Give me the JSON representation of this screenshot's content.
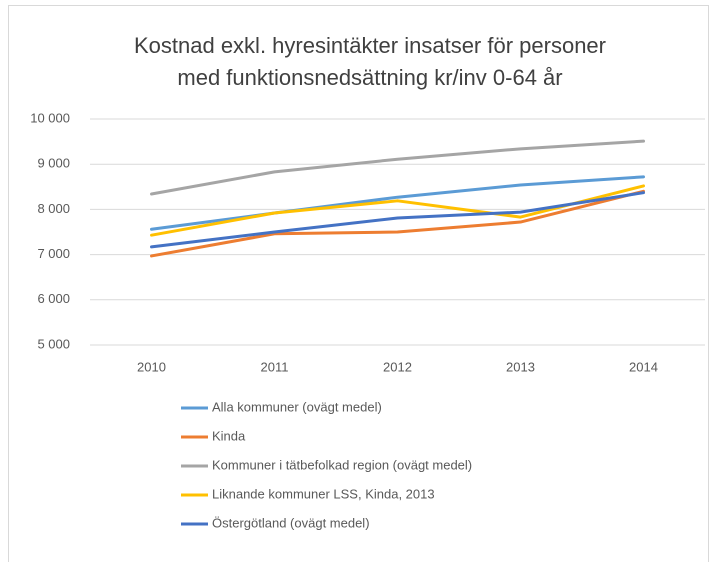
{
  "chart_data": {
    "type": "line",
    "title": [
      "Kostnad exkl. hyresintäkter insatser för personer",
      "med funktionsnedsättning kr/inv 0-64 år"
    ],
    "categories": [
      "2010",
      "2011",
      "2012",
      "2013",
      "2014"
    ],
    "series": [
      {
        "name": "Alla kommuner (ovägt medel)",
        "color": "#5b9bd5",
        "values": [
          7560,
          7920,
          8270,
          8540,
          8720
        ]
      },
      {
        "name": "Kinda",
        "color": "#ed7d31",
        "values": [
          6970,
          7460,
          7500,
          7720,
          8400
        ]
      },
      {
        "name": "Kommuner i tätbefolkad region (ovägt medel)",
        "color": "#a5a5a5",
        "values": [
          8340,
          8830,
          9110,
          9340,
          9510
        ]
      },
      {
        "name": "Liknande kommuner LSS, Kinda, 2013",
        "color": "#ffc000",
        "values": [
          7430,
          7920,
          8190,
          7830,
          8520
        ]
      },
      {
        "name": "Östergötland (ovägt medel)",
        "color": "#4472c4",
        "values": [
          7170,
          7500,
          7810,
          7940,
          8370
        ]
      }
    ],
    "ylim": [
      5000,
      10000
    ],
    "yticks": [
      {
        "value": 5000,
        "label": "5 000"
      },
      {
        "value": 6000,
        "label": "6 000"
      },
      {
        "value": 7000,
        "label": "7 000"
      },
      {
        "value": 8000,
        "label": "8 000"
      },
      {
        "value": 9000,
        "label": "9 000"
      },
      {
        "value": 10000,
        "label": "10 000"
      }
    ],
    "grid": true,
    "legend": "bottom"
  }
}
